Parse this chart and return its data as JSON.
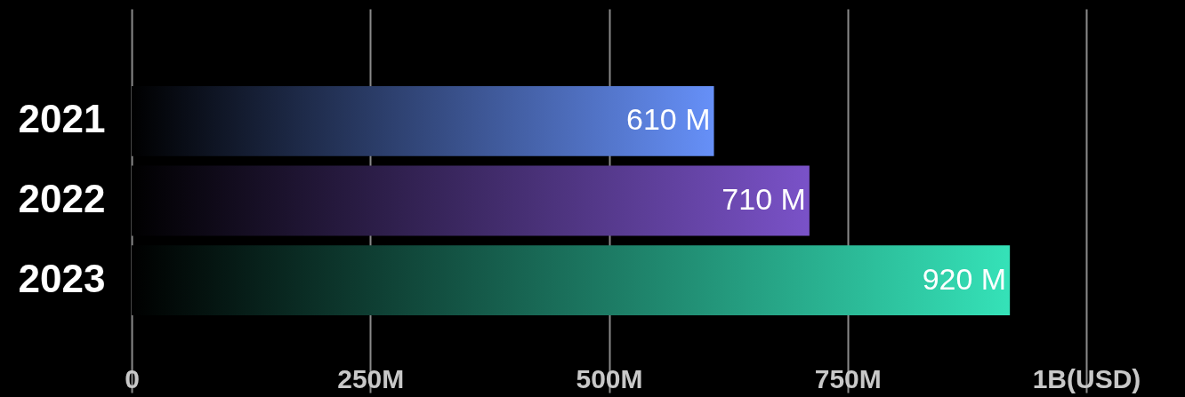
{
  "chart_data": {
    "type": "bar",
    "orientation": "horizontal",
    "categories": [
      "2021",
      "2022",
      "2023"
    ],
    "values": [
      610000000,
      710000000,
      920000000
    ],
    "colors": [
      "#6690f8",
      "#7a52c8",
      "#35e2b8"
    ],
    "value_labels": [
      "610 M",
      "710 M",
      "920 M"
    ],
    "xlim": [
      0,
      1000000000
    ],
    "xticks": [
      0,
      {
        "value": 250000000,
        "label": "250M"
      },
      {
        "value": 500000000,
        "label": "500M"
      },
      {
        "value": 750000000,
        "label": "750M"
      },
      {
        "value": 1000000000,
        "label": "1B(USD)"
      }
    ],
    "grid": "x"
  }
}
